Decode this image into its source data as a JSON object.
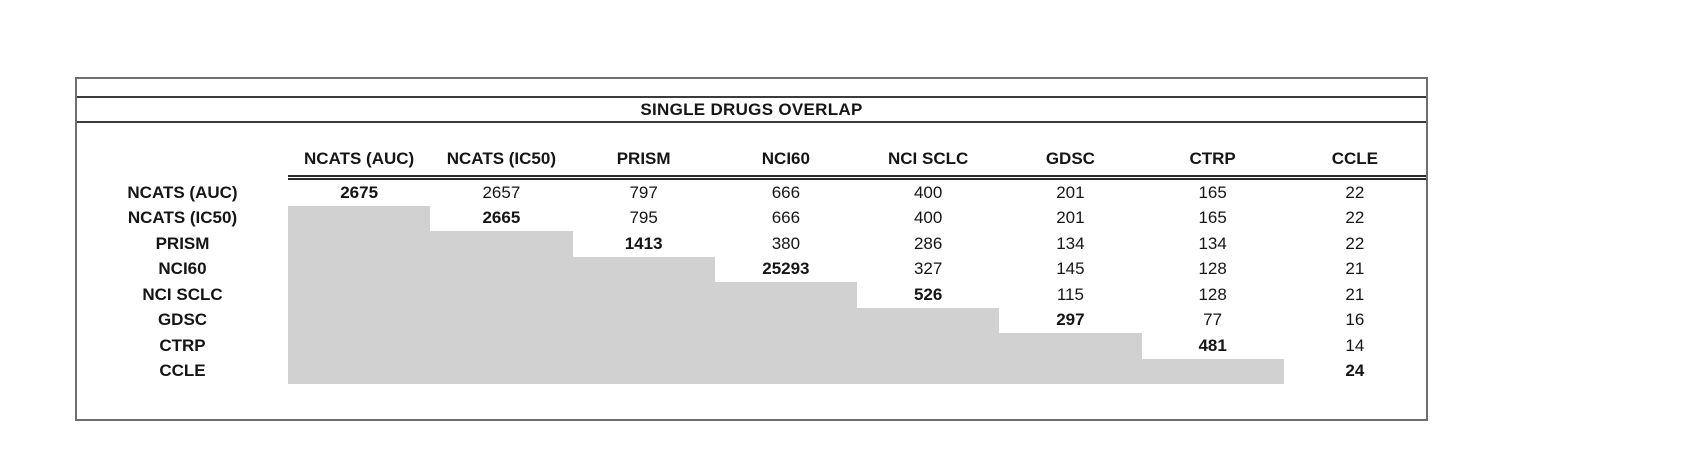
{
  "chart_data": {
    "type": "table",
    "title": "SINGLE DRUGS OVERLAP",
    "columns": [
      "NCATS (AUC)",
      "NCATS (IC50)",
      "PRISM",
      "NCI60",
      "NCI SCLC",
      "GDSC",
      "CTRP",
      "CCLE"
    ],
    "rows": [
      {
        "label": "NCATS (AUC)",
        "cells": [
          "2675",
          "2657",
          "797",
          "666",
          "400",
          "201",
          "165",
          "22"
        ]
      },
      {
        "label": "NCATS (IC50)",
        "cells": [
          "",
          "2665",
          "795",
          "666",
          "400",
          "201",
          "165",
          "22"
        ]
      },
      {
        "label": "PRISM",
        "cells": [
          "",
          "",
          "1413",
          "380",
          "286",
          "134",
          "134",
          "22"
        ]
      },
      {
        "label": "NCI60",
        "cells": [
          "",
          "",
          "",
          "25293",
          "327",
          "145",
          "128",
          "21"
        ]
      },
      {
        "label": "NCI SCLC",
        "cells": [
          "",
          "",
          "",
          "",
          "526",
          "115",
          "128",
          "21"
        ]
      },
      {
        "label": "GDSC",
        "cells": [
          "",
          "",
          "",
          "",
          "",
          "297",
          "77",
          "16"
        ]
      },
      {
        "label": "CTRP",
        "cells": [
          "",
          "",
          "",
          "",
          "",
          "",
          "481",
          "14"
        ]
      },
      {
        "label": "CCLE",
        "cells": [
          "",
          "",
          "",
          "",
          "",
          "",
          "",
          "24"
        ]
      }
    ],
    "layout_hints": {
      "diagonal_bold": true,
      "lower_triangle_shaded": true,
      "shade_color": "#d1d1d1",
      "rule_color": "#3b3b3b",
      "outer_border_color": "#6e6e6e",
      "header_underline": "double"
    }
  }
}
